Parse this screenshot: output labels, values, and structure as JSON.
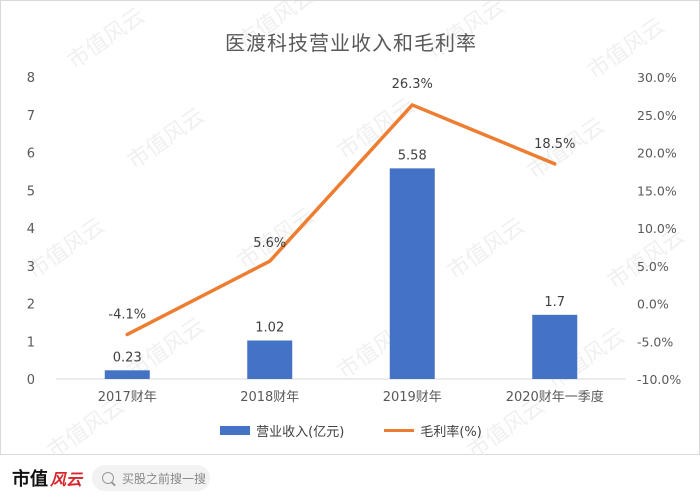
{
  "chart_data": {
    "type": "bar+line",
    "title": "医渡科技营业收入和毛利率",
    "categories": [
      "2017财年",
      "2018财年",
      "2019财年",
      "2020财年一季度"
    ],
    "series": [
      {
        "name": "营业收入(亿元)",
        "type": "bar",
        "axis": "left",
        "color": "#4472c4",
        "values": [
          0.23,
          1.02,
          5.58,
          1.7
        ],
        "labels": [
          "0.23",
          "1.02",
          "5.58",
          "1.7"
        ]
      },
      {
        "name": "毛利率(%)",
        "type": "line",
        "axis": "right",
        "color": "#ed7d31",
        "values": [
          -4.1,
          5.6,
          26.3,
          18.5
        ],
        "labels": [
          "-4.1%",
          "5.6%",
          "26.3%",
          "18.5%"
        ]
      }
    ],
    "y_left": {
      "min": 0,
      "max": 8,
      "ticks": [
        "0",
        "1",
        "2",
        "3",
        "4",
        "5",
        "6",
        "7",
        "8"
      ]
    },
    "y_right": {
      "min": -10,
      "max": 30,
      "ticks": [
        "-10.0%",
        "-5.0%",
        "0.0%",
        "5.0%",
        "10.0%",
        "15.0%",
        "20.0%",
        "25.0%",
        "30.0%"
      ]
    },
    "grid": false,
    "legend_position": "bottom"
  },
  "watermark": "市值风云",
  "footer": {
    "brand_main": "市值",
    "brand_script": "风云",
    "search_placeholder": "买股之前搜一搜"
  }
}
